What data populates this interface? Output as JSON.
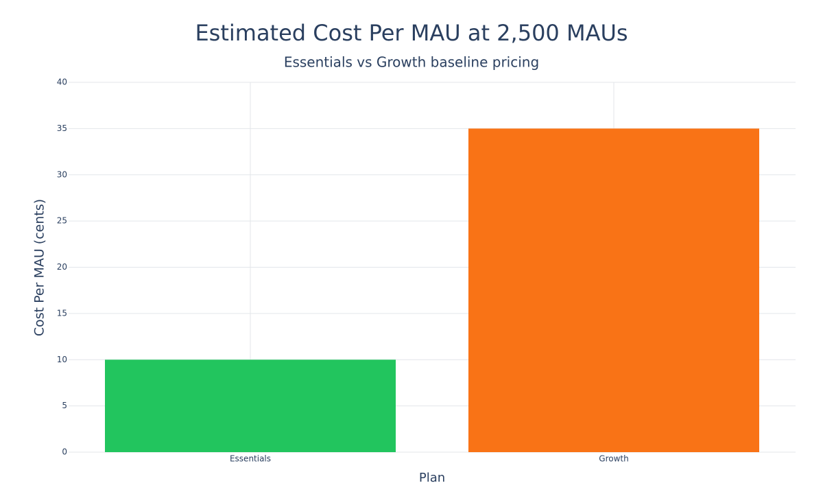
{
  "chart_data": {
    "type": "bar",
    "title": "Estimated Cost Per MAU at 2,500 MAUs",
    "subtitle": "Essentials vs Growth baseline pricing",
    "x_label": "Plan",
    "y_label": "Cost Per MAU (cents)",
    "categories": [
      "Essentials",
      "Growth"
    ],
    "values": [
      10,
      35
    ],
    "colors": [
      "#22c55e",
      "#f97316"
    ],
    "ylim": [
      0,
      40
    ],
    "yticks": [
      0,
      5,
      10,
      15,
      20,
      25,
      30,
      35,
      40
    ],
    "grid": true
  }
}
